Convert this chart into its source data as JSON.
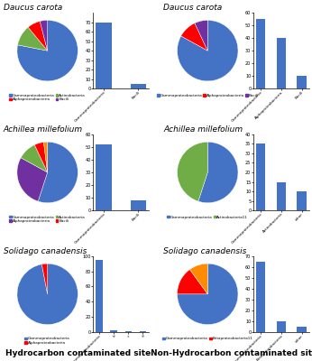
{
  "panels": [
    {
      "title": "Daucus carota",
      "pie_values": [
        78,
        11,
        7,
        4
      ],
      "pie_colors": [
        "#4472C4",
        "#70AD47",
        "#FF0000",
        "#7030A0"
      ],
      "pie_startangle": 90,
      "pie_counterclock": false,
      "bar_values": [
        70,
        5
      ],
      "bar_ylim": [
        0,
        80
      ],
      "bar_yticks": [
        0,
        10,
        20,
        30,
        40,
        50,
        60,
        70
      ],
      "bar_xlabels": [
        "Gammaproteobacteria",
        "Bacili"
      ],
      "legend_items": [
        {
          "label": "Gammaproteobacteria",
          "color": "#4472C4"
        },
        {
          "label": "Alphaproteobacteria",
          "color": "#FF0000"
        },
        {
          "label": "Actinobacteria",
          "color": "#70AD47"
        },
        {
          "label": "Bacili",
          "color": "#7030A0"
        }
      ],
      "legend_ncol": 2
    },
    {
      "title": "Daucus carota",
      "pie_values": [
        83,
        10,
        7
      ],
      "pie_colors": [
        "#4472C4",
        "#FF0000",
        "#7030A0"
      ],
      "pie_startangle": 90,
      "pie_counterclock": false,
      "bar_values": [
        55,
        40,
        10
      ],
      "bar_ylim": [
        0,
        60
      ],
      "bar_yticks": [
        0,
        10,
        20,
        30,
        40,
        50,
        60
      ],
      "bar_xlabels": [
        "Gammaproteobacteria",
        "Alphaproteobacteria",
        "Bacili"
      ],
      "legend_items": [
        {
          "label": "Gammaproteobacteria",
          "color": "#4472C4"
        },
        {
          "label": "Alphaproteobacteria",
          "color": "#FF0000"
        },
        {
          "label": "Bacili",
          "color": "#7030A0"
        }
      ],
      "legend_ncol": 3
    },
    {
      "title": "Achillea millefolium",
      "pie_values": [
        55,
        28,
        10,
        5,
        2
      ],
      "pie_colors": [
        "#4472C4",
        "#7030A0",
        "#70AD47",
        "#FF0000",
        "#FF8C00"
      ],
      "pie_startangle": 90,
      "pie_counterclock": false,
      "bar_values": [
        52,
        8
      ],
      "bar_ylim": [
        0,
        60
      ],
      "bar_yticks": [
        0,
        10,
        20,
        30,
        40,
        50,
        60
      ],
      "bar_xlabels": [
        "Gammaproteobacteria",
        "Bacili"
      ],
      "legend_items": [
        {
          "label": "Gammaproteobacteria",
          "color": "#4472C4"
        },
        {
          "label": "Alphaproteobacteria",
          "color": "#7030A0"
        },
        {
          "label": "Actinobacteria",
          "color": "#70AD47"
        },
        {
          "label": "Bacili",
          "color": "#FF0000"
        }
      ],
      "legend_ncol": 2
    },
    {
      "title": "Achillea millefolium",
      "pie_values": [
        55,
        45
      ],
      "pie_colors": [
        "#4472C4",
        "#70AD47"
      ],
      "pie_startangle": 90,
      "pie_counterclock": false,
      "bar_values": [
        35,
        15,
        10
      ],
      "bar_ylim": [
        0,
        40
      ],
      "bar_yticks": [
        0,
        5,
        10,
        15,
        20,
        25,
        30,
        35,
        40
      ],
      "bar_xlabels": [
        "Gammaproteobacteria",
        "Actinobacteria",
        "other"
      ],
      "legend_items": [
        {
          "label": "Gammaproteobacteria",
          "color": "#4472C4"
        },
        {
          "label": "Actinobacteria11",
          "color": "#70AD47"
        }
      ],
      "legend_ncol": 2
    },
    {
      "title": "Solidago canadensis",
      "pie_values": [
        97,
        3
      ],
      "pie_colors": [
        "#4472C4",
        "#FF0000"
      ],
      "pie_startangle": 90,
      "pie_counterclock": false,
      "bar_values": [
        95,
        2,
        1,
        1
      ],
      "bar_ylim": [
        0,
        100
      ],
      "bar_yticks": [
        0,
        20,
        40,
        60,
        80,
        100
      ],
      "bar_xlabels": [
        "Gammaproteobacteria",
        "b",
        "c",
        "d"
      ],
      "legend_items": [
        {
          "label": "Gammaproteobacteria",
          "color": "#4472C4"
        },
        {
          "label": "Alphaproteobacteria",
          "color": "#FF0000"
        }
      ],
      "legend_ncol": 1
    },
    {
      "title": "Solidago canadensis",
      "pie_values": [
        75,
        15,
        10
      ],
      "pie_colors": [
        "#4472C4",
        "#FF0000",
        "#FF8C00"
      ],
      "pie_startangle": 90,
      "pie_counterclock": false,
      "bar_values": [
        65,
        10,
        5
      ],
      "bar_ylim": [
        0,
        70
      ],
      "bar_yticks": [
        0,
        10,
        20,
        30,
        40,
        50,
        60,
        70
      ],
      "bar_xlabels": [
        "Gammaproteobacteria",
        "Betaproteobacteria",
        "other"
      ],
      "legend_items": [
        {
          "label": "Gammaproteobacteria",
          "color": "#4472C4"
        },
        {
          "label": "Betaproteobacteria11",
          "color": "#FF0000"
        }
      ],
      "legend_ncol": 2
    }
  ],
  "plant_titles": [
    "Daucus carota",
    "Achillea millefolium",
    "Solidago canadensis"
  ],
  "col_titles": [
    "Hydrocarbon contaminated site",
    "Non-Hydrocarbon contaminated site"
  ],
  "background_color": "#FFFFFF",
  "bar_color": "#4472C4"
}
